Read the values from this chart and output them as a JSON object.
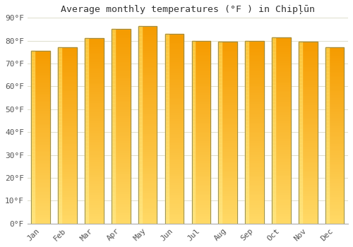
{
  "title": "Average monthly temperatures (°F ) in Chipļūn",
  "months": [
    "Jan",
    "Feb",
    "Mar",
    "Apr",
    "May",
    "Jun",
    "Jul",
    "Aug",
    "Sep",
    "Oct",
    "Nov",
    "Dec"
  ],
  "values": [
    75.5,
    77,
    81,
    85,
    86.5,
    83,
    80,
    79.5,
    80,
    81.5,
    79.5,
    77
  ],
  "bar_color": "#FFA826",
  "bar_edge_color": "#888855",
  "ylim": [
    0,
    90
  ],
  "yticks": [
    0,
    10,
    20,
    30,
    40,
    50,
    60,
    70,
    80,
    90
  ],
  "ytick_labels": [
    "0°F",
    "10°F",
    "20°F",
    "30°F",
    "40°F",
    "50°F",
    "60°F",
    "70°F",
    "80°F",
    "90°F"
  ],
  "background_color": "#ffffff",
  "grid_color": "#ddddcc",
  "title_fontsize": 9.5,
  "tick_fontsize": 8,
  "bar_width": 0.7
}
